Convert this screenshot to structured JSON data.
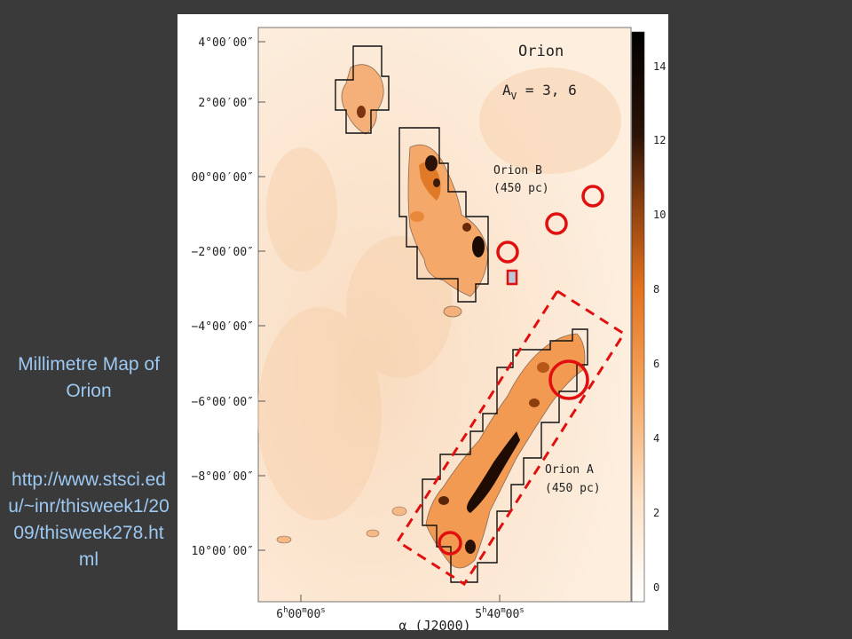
{
  "slide": {
    "title": "Millimetre Map of Orion",
    "url": "http://www.stsci.edu/~inr/thisweek1/2009/thisweek278.html"
  },
  "figure": {
    "region_label": "Orion",
    "extinction_label": "A",
    "extinction_subscript": "V",
    "extinction_values": " = 3, 6",
    "cloud_b_name": "Orion B",
    "cloud_b_distance": "(450 pc)",
    "cloud_a_name": "Orion A",
    "cloud_a_distance": "(450 pc)",
    "dec_ticks": [
      "4°00′00″",
      "2°00′00″",
      "00°00′00″",
      "−2°00′00″",
      "−4°00′00″",
      "−6°00′00″",
      "−8°00′00″",
      "10°00′00″"
    ],
    "ra_tick_1": "6h00m00s",
    "ra_tick_2": "5h40m00s",
    "ra_tick_1_main": "6",
    "ra_tick_1_h": "h",
    "ra_tick_1_mid": "00",
    "ra_tick_1_m": "m",
    "ra_tick_1_end": "00",
    "ra_tick_1_s": "s",
    "ra_tick_2_main": "5",
    "ra_tick_2_h": "h",
    "ra_tick_2_mid": "40",
    "ra_tick_2_m": "m",
    "ra_tick_2_end": "00",
    "ra_tick_2_s": "s",
    "xaxis_label": "α (J2000)",
    "colorbar_ticks": [
      "14",
      "12",
      "10",
      "8",
      "6",
      "4",
      "2",
      "0"
    ],
    "colors": {
      "map_background": "#fbe7d2",
      "cloud_light": "#f6b884",
      "cloud_mid": "#e8802e",
      "cloud_dark": "#2a1608",
      "annotation_red": "#e01010",
      "caption_blue": "#9cc8f2"
    }
  }
}
